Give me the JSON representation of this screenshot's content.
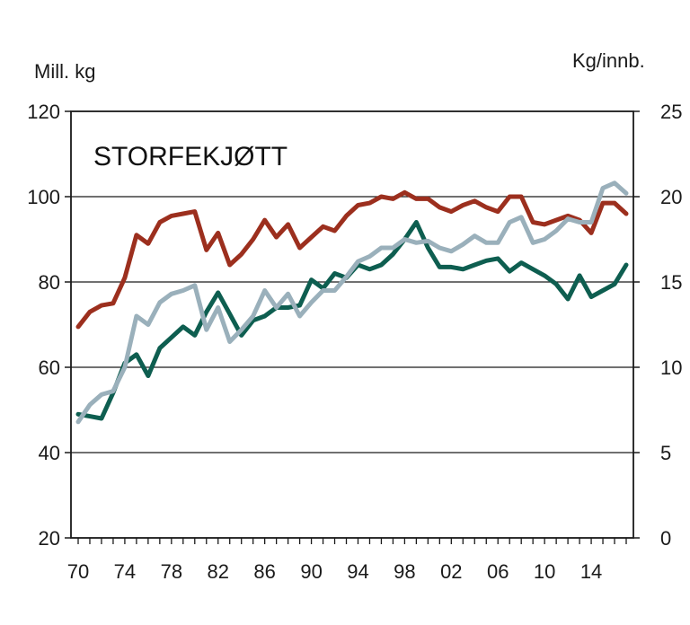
{
  "chart_data": {
    "type": "line",
    "title": "STORFEKJØTT",
    "ylabel_left": "Mill. kg",
    "ylabel_right": "Kg/innb.",
    "ylim_left": [
      20,
      120
    ],
    "ylim_right": [
      0,
      25
    ],
    "yticks_left": [
      "20",
      "40",
      "60",
      "80",
      "100",
      "120"
    ],
    "yticks_right": [
      "0",
      "5",
      "10",
      "15",
      "20",
      "25"
    ],
    "xlim": [
      1970,
      2017
    ],
    "xticks": [
      "70",
      "74",
      "78",
      "82",
      "86",
      "90",
      "94",
      "98",
      "02",
      "06",
      "10",
      "14"
    ],
    "grid": true,
    "x": [
      1970,
      1971,
      1972,
      1973,
      1974,
      1975,
      1976,
      1977,
      1978,
      1979,
      1980,
      1981,
      1982,
      1983,
      1984,
      1985,
      1986,
      1987,
      1988,
      1989,
      1990,
      1991,
      1992,
      1993,
      1994,
      1995,
      1996,
      1997,
      1998,
      1999,
      2000,
      2001,
      2002,
      2003,
      2004,
      2005,
      2006,
      2007,
      2008,
      2009,
      2010,
      2011,
      2012,
      2013,
      2014,
      2015,
      2016,
      2017
    ],
    "series": [
      {
        "axis": "left",
        "color": "#9c2f1e",
        "values": [
          69.5,
          73,
          74.5,
          75,
          81,
          91,
          89,
          94,
          95.5,
          96,
          96.5,
          87.5,
          91.5,
          84,
          86.5,
          90,
          94.5,
          90.5,
          93.5,
          88,
          90.5,
          93,
          92,
          95.5,
          98,
          98.5,
          100,
          99.5,
          101,
          99.5,
          99.5,
          97.5,
          96.5,
          98,
          99,
          97.5,
          96.5,
          100,
          100,
          94,
          93.5,
          94.5,
          95.5,
          94.5,
          91.5,
          98.5,
          98.5,
          96
        ]
      },
      {
        "axis": "left",
        "color": "#0e5e50",
        "values": [
          49,
          48.5,
          48,
          54,
          61,
          63,
          58,
          64.5,
          67,
          69.5,
          67.5,
          73,
          77.5,
          72.5,
          67.5,
          71,
          72,
          74,
          74,
          74.5,
          80.5,
          78.5,
          82,
          81,
          84,
          83,
          84,
          86.5,
          90,
          94,
          88,
          83.5,
          83.5,
          83,
          84,
          85,
          85.5,
          82.5,
          84.5,
          83,
          81.5,
          79.5,
          76,
          81.5,
          76.5,
          78,
          79.5,
          84
        ]
      },
      {
        "axis": "right",
        "color": "#9ab0bb",
        "values": [
          6.8,
          7.8,
          8.4,
          8.6,
          10,
          13,
          12.5,
          13.8,
          14.3,
          14.5,
          14.8,
          12.2,
          13.5,
          11.5,
          12.2,
          13,
          14.5,
          13.5,
          14.3,
          13,
          13.8,
          14.5,
          14.5,
          15.3,
          16.2,
          16.5,
          17,
          17,
          17.5,
          17.3,
          17.4,
          17,
          16.8,
          17.2,
          17.7,
          17.3,
          17.3,
          18.5,
          18.8,
          17.3,
          17.5,
          18,
          18.7,
          18.5,
          18.5,
          20.5,
          20.8,
          20.2
        ]
      }
    ]
  }
}
